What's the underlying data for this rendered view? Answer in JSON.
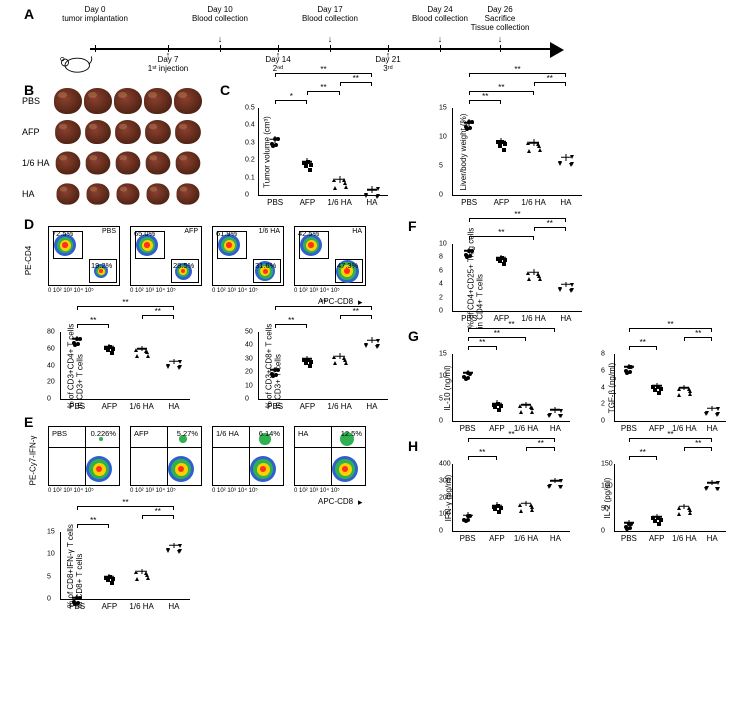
{
  "panel_labels": {
    "A": "A",
    "B": "B",
    "C": "C",
    "D": "D",
    "E": "E",
    "F": "F",
    "G": "G",
    "H": "H"
  },
  "timeline": {
    "events": [
      {
        "x": 45,
        "top_label": "Day 0\ntumor implantation",
        "bottom_label": ""
      },
      {
        "x": 118,
        "top_label": "",
        "bottom_label": "Day 7\n1ˢᵗ injection",
        "arrow": "up"
      },
      {
        "x": 170,
        "top_label": "Day 10\nBlood collection",
        "bottom_label": "",
        "arrow": "down"
      },
      {
        "x": 228,
        "top_label": "",
        "bottom_label": "Day 14\n2ⁿᵈ",
        "arrow": "up"
      },
      {
        "x": 280,
        "top_label": "Day 17\nBlood collection",
        "bottom_label": "",
        "arrow": "down"
      },
      {
        "x": 338,
        "top_label": "",
        "bottom_label": "Day 21\n3ʳᵈ",
        "arrow": "up"
      },
      {
        "x": 390,
        "top_label": "Day 24\nBlood collection",
        "bottom_label": "",
        "arrow": "down"
      },
      {
        "x": 450,
        "top_label": "Day 26\nSacrifice\nTissue collection",
        "bottom_label": "",
        "arrow": "down"
      }
    ]
  },
  "groups": [
    "PBS",
    "AFP",
    "1/6 HA",
    "HA"
  ],
  "tumor_rows": [
    "PBS",
    "AFP",
    "1/6 HA",
    "HA"
  ],
  "plots": {
    "C_tumor": {
      "ylabel": "Tumor volume (cm³)",
      "ylim": [
        0,
        0.5
      ],
      "yticks": [
        0,
        0.1,
        0.2,
        0.3,
        0.4,
        0.5
      ],
      "means": [
        0.32,
        0.19,
        0.09,
        0.03
      ],
      "sig": [
        [
          "PBS",
          "AFP",
          "*"
        ],
        [
          "AFP",
          "1/6 HA",
          "**"
        ],
        [
          "1/6 HA",
          "HA",
          "**"
        ],
        [
          "PBS",
          "HA",
          "**"
        ]
      ]
    },
    "C_liver": {
      "ylabel": "Liver/body weight (%)",
      "ylim": [
        0,
        15
      ],
      "yticks": [
        0,
        5,
        10,
        15
      ],
      "means": [
        12.5,
        9.2,
        9.0,
        6.5
      ],
      "sig": [
        [
          "PBS",
          "AFP",
          "**"
        ],
        [
          "PBS",
          "1/6 HA",
          "**"
        ],
        [
          "1/6 HA",
          "HA",
          "**"
        ],
        [
          "PBS",
          "HA",
          "**"
        ]
      ]
    },
    "D_cd4": {
      "ylabel": "% of CD3+CD4+ T cells\nin CD3+ T cells",
      "ylim": [
        0,
        80
      ],
      "yticks": [
        0,
        20,
        40,
        60,
        80
      ],
      "means": [
        72,
        63,
        60,
        45
      ],
      "sig": [
        [
          "PBS",
          "AFP",
          "**"
        ],
        [
          "1/6 HA",
          "HA",
          "**"
        ],
        [
          "PBS",
          "HA",
          "**"
        ]
      ]
    },
    "D_cd8": {
      "ylabel": "% of CD3+CD8+ T cells\nin CD3+ T cells",
      "ylim": [
        0,
        50
      ],
      "yticks": [
        0,
        10,
        20,
        30,
        40,
        50
      ],
      "means": [
        22,
        30,
        32,
        44
      ],
      "sig": [
        [
          "PBS",
          "AFP",
          "**"
        ],
        [
          "1/6 HA",
          "HA",
          "**"
        ],
        [
          "PBS",
          "HA",
          "**"
        ]
      ]
    },
    "E_ifn": {
      "ylabel": "% of CD8+IFN-γ T cells\nin CD8+ T cells",
      "ylim": [
        0,
        15
      ],
      "yticks": [
        0,
        5,
        10,
        15
      ],
      "means": [
        0.3,
        5.1,
        6.2,
        12.0
      ],
      "sig": [
        [
          "PBS",
          "AFP",
          "**"
        ],
        [
          "1/6 HA",
          "HA",
          "**"
        ],
        [
          "PBS",
          "HA",
          "**"
        ]
      ]
    },
    "F_treg": {
      "ylabel": "% of CD4+CD25+ Treg cells\nin CD4+ T cells",
      "ylim": [
        0,
        10
      ],
      "yticks": [
        0,
        2,
        4,
        6,
        8,
        10
      ],
      "means": [
        9.0,
        8.0,
        5.8,
        4.0
      ],
      "sig": [
        [
          "PBS",
          "1/6 HA",
          "**"
        ],
        [
          "1/6 HA",
          "HA",
          "**"
        ],
        [
          "PBS",
          "HA",
          "**"
        ]
      ]
    },
    "G_il10": {
      "ylabel": "IL-10 (ng/ml)",
      "ylim": [
        0,
        15
      ],
      "yticks": [
        0,
        5,
        10,
        15
      ],
      "means": [
        10.8,
        4.0,
        3.6,
        2.5
      ],
      "sig": [
        [
          "PBS",
          "AFP",
          "**"
        ],
        [
          "PBS",
          "1/6 HA",
          "**"
        ],
        [
          "PBS",
          "HA",
          "**"
        ]
      ]
    },
    "G_tgf": {
      "ylabel": "TGF-β (ng/ml)",
      "ylim": [
        0,
        8
      ],
      "yticks": [
        0,
        2,
        4,
        6,
        8
      ],
      "means": [
        6.5,
        4.2,
        4.0,
        1.5
      ],
      "sig": [
        [
          "PBS",
          "AFP",
          "**"
        ],
        [
          "1/6 HA",
          "HA",
          "**"
        ],
        [
          "PBS",
          "HA",
          "**"
        ]
      ]
    },
    "H_ifn": {
      "ylabel": "IFN-γ (pg/ml)",
      "ylim": [
        0,
        400
      ],
      "yticks": [
        0,
        100,
        200,
        300,
        400
      ],
      "means": [
        95,
        155,
        165,
        300
      ],
      "sig": [
        [
          "PBS",
          "AFP",
          "**"
        ],
        [
          "1/6 HA",
          "HA",
          "**"
        ],
        [
          "PBS",
          "HA",
          "**"
        ]
      ]
    },
    "H_il2": {
      "ylabel": "IL-2 (pg/ml)",
      "ylim": [
        0,
        150
      ],
      "yticks": [
        0,
        50,
        100,
        150
      ],
      "means": [
        18,
        32,
        55,
        108
      ],
      "sig": [
        [
          "PBS",
          "AFP",
          "**"
        ],
        [
          "1/6 HA",
          "HA",
          "**"
        ],
        [
          "PBS",
          "HA",
          "**"
        ]
      ]
    }
  },
  "facs_D": {
    "yaxis": "PE-CD4",
    "xaxis": "APC-CD8",
    "xticks": "0 10² 10³ 10⁴ 10⁵",
    "panels": [
      {
        "group": "PBS",
        "cd4": "72.5%",
        "cd8": "19.2%"
      },
      {
        "group": "AFP",
        "cd4": "65.0%",
        "cd8": "28.5%"
      },
      {
        "group": "1/6 HA",
        "cd4": "61.9%",
        "cd8": "31.6%"
      },
      {
        "group": "HA",
        "cd4": "42.5%",
        "cd8": "47.3%"
      }
    ]
  },
  "facs_E": {
    "yaxis": "PE-Cy7-IFN-γ",
    "xaxis": "APC-CD8",
    "xticks": "0 10² 10³ 10⁴ 10⁵",
    "panels": [
      {
        "group": "PBS",
        "pct": "0.226%"
      },
      {
        "group": "AFP",
        "pct": "5.27%"
      },
      {
        "group": "1/6 HA",
        "pct": "6.14%"
      },
      {
        "group": "HA",
        "pct": "12.5%"
      }
    ]
  },
  "markers": [
    "circle",
    "square",
    "triangle",
    "invtriangle"
  ],
  "colors": {
    "density_high": "#ff3020",
    "density_mid": "#ffd000",
    "density_low": "#30b050",
    "density_vlow": "#3060d0"
  }
}
